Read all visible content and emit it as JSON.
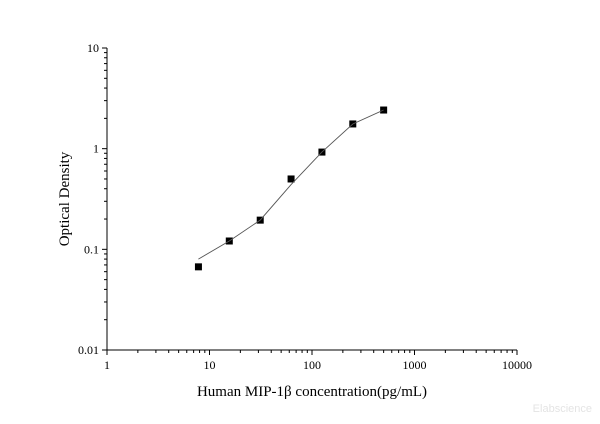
{
  "chart_data": {
    "type": "scatter",
    "title": "",
    "xlabel": "Human MIP-1β concentration(pg/mL)",
    "ylabel": "Optical Density",
    "x_scale": "log",
    "y_scale": "log",
    "xlim": [
      1,
      10000
    ],
    "ylim": [
      0.01,
      10
    ],
    "x_ticks": [
      "1",
      "10",
      "100",
      "1000",
      "10000"
    ],
    "y_ticks": [
      "0.01",
      "0.1",
      "1",
      "10"
    ],
    "grid": false,
    "series": [
      {
        "type": "scatter",
        "marker": "square",
        "color": "#000000",
        "x": [
          7.8,
          15.6,
          31.25,
          62.5,
          125,
          250,
          500
        ],
        "y": [
          0.067,
          0.121,
          0.195,
          0.5,
          0.925,
          1.76,
          2.42
        ]
      },
      {
        "type": "line",
        "color": "#555555",
        "x": [
          7.8,
          15.6,
          31.25,
          62.5,
          125,
          250,
          500
        ],
        "y": [
          0.08,
          0.121,
          0.195,
          0.44,
          0.925,
          1.76,
          2.42
        ]
      }
    ]
  },
  "watermark": "Elabscience"
}
